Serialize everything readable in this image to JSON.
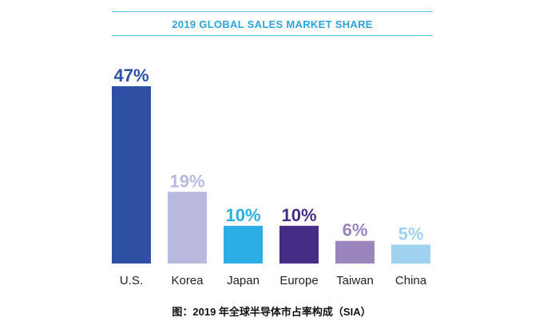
{
  "chart_data": {
    "type": "bar",
    "title": "2019 GLOBAL SALES MARKET SHARE",
    "categories": [
      "U.S.",
      "Korea",
      "Japan",
      "Europe",
      "Taiwan",
      "China"
    ],
    "values": [
      47,
      19,
      10,
      10,
      6,
      5
    ],
    "value_labels": [
      "47%",
      "19%",
      "10%",
      "10%",
      "6%",
      "5%"
    ],
    "colors": [
      "#2e4fa3",
      "#b9b9dd",
      "#2caee4",
      "#452c85",
      "#9a85bd",
      "#9fd2ef"
    ],
    "ylim": [
      0,
      50
    ],
    "grid": false,
    "legend": "none"
  },
  "caption": "图：2019 年全球半导体市占率构成（SIA）"
}
